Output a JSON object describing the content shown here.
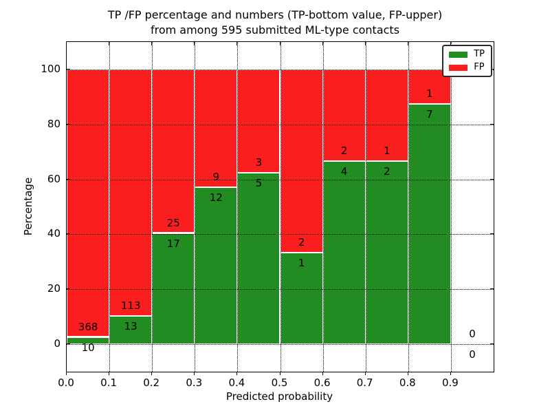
{
  "title": {
    "line1": "TP /FP percentage and numbers (TP-bottom value, FP-upper)",
    "line2": "from among 595 submitted ML-type contacts"
  },
  "axes": {
    "xlabel": "Predicted probability",
    "ylabel": "Percentage",
    "xtick_labels": [
      "0.0",
      "0.1",
      "0.2",
      "0.3",
      "0.4",
      "0.5",
      "0.6",
      "0.7",
      "0.8",
      "0.9"
    ],
    "ytick_labels": [
      "0",
      "20",
      "40",
      "60",
      "80",
      "100"
    ]
  },
  "legend": {
    "items": [
      {
        "label": "TP",
        "color": "#228b22"
      },
      {
        "label": "FP",
        "color": "#fb1e1e"
      }
    ]
  },
  "colors": {
    "tp": "#228b22",
    "fp": "#fb1e1e",
    "bar_edge": "#ffffff",
    "grid": "#000000",
    "text": "#000000"
  },
  "chart_data": {
    "type": "bar",
    "stacked": true,
    "normalized": "each bar totals 100%; label above boundary = FP count, below = TP count",
    "title": "TP /FP percentage and numbers (TP-bottom value, FP-upper) from among 595 submitted ML-type contacts",
    "xlabel": "Predicted probability",
    "ylabel": "Percentage",
    "xlim": [
      0.0,
      1.0
    ],
    "ylim": [
      -10,
      110
    ],
    "xticks": [
      0.0,
      0.1,
      0.2,
      0.3,
      0.4,
      0.5,
      0.6,
      0.7,
      0.8,
      0.9
    ],
    "yticks": [
      0,
      20,
      40,
      60,
      80,
      100
    ],
    "grid": true,
    "grid_style": "dotted",
    "legend_position": "upper right",
    "bin_width": 0.1,
    "total_contacts": 595,
    "bins": [
      {
        "range": [
          0.0,
          0.1
        ],
        "tp": 10,
        "fp": 368,
        "tp_pct": 2.6
      },
      {
        "range": [
          0.1,
          0.2
        ],
        "tp": 13,
        "fp": 113,
        "tp_pct": 10.3
      },
      {
        "range": [
          0.2,
          0.3
        ],
        "tp": 17,
        "fp": 25,
        "tp_pct": 40.5
      },
      {
        "range": [
          0.3,
          0.4
        ],
        "tp": 12,
        "fp": 9,
        "tp_pct": 57.1
      },
      {
        "range": [
          0.4,
          0.5
        ],
        "tp": 5,
        "fp": 3,
        "tp_pct": 62.5
      },
      {
        "range": [
          0.5,
          0.6
        ],
        "tp": 1,
        "fp": 2,
        "tp_pct": 33.3
      },
      {
        "range": [
          0.6,
          0.7
        ],
        "tp": 4,
        "fp": 2,
        "tp_pct": 66.7
      },
      {
        "range": [
          0.7,
          0.8
        ],
        "tp": 2,
        "fp": 1,
        "tp_pct": 66.7
      },
      {
        "range": [
          0.8,
          0.9
        ],
        "tp": 7,
        "fp": 1,
        "tp_pct": 87.5
      },
      {
        "range": [
          0.9,
          1.0
        ],
        "tp": 0,
        "fp": 0,
        "tp_pct": null
      }
    ],
    "series": [
      {
        "name": "TP",
        "color": "#228b22",
        "counts": [
          10,
          13,
          17,
          12,
          5,
          1,
          4,
          2,
          7,
          0
        ]
      },
      {
        "name": "FP",
        "color": "#fb1e1e",
        "counts": [
          368,
          113,
          25,
          9,
          3,
          2,
          2,
          1,
          1,
          0
        ]
      }
    ]
  }
}
